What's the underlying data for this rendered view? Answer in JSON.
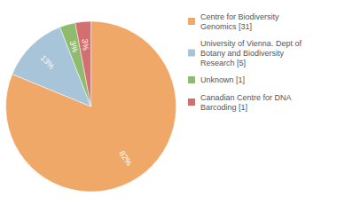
{
  "chart_data": {
    "type": "pie",
    "categories": [
      "Centre for Biodiversity\nGenomics [31]",
      "University of Vienna. Dept of\nBotany and Biodiversity\nResearch [5]",
      "Unknown [1]",
      "Canadian Centre for DNA\nBarcoding [1]"
    ],
    "values": [
      82,
      13,
      3,
      3
    ],
    "value_labels": [
      "82%",
      "13%",
      "3%",
      "3%"
    ],
    "colors": [
      "#f0a868",
      "#a8c4d8",
      "#8fbb6e",
      "#d46f6f"
    ],
    "data_labels": true,
    "legend": "upper right"
  }
}
